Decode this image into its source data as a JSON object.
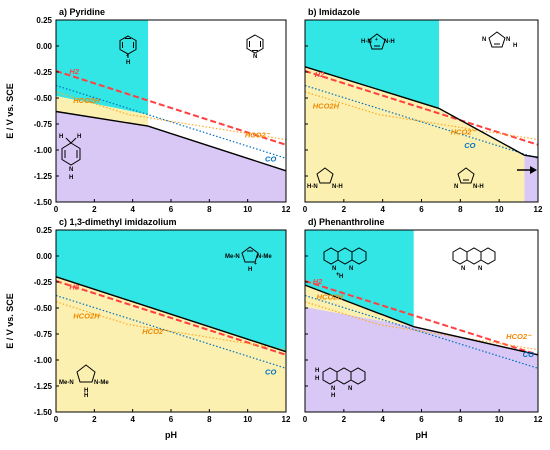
{
  "chart_data": [
    {
      "type": "area",
      "title": "a) Pyridine",
      "xlabel": "",
      "ylabel": "E / V vs. SCE",
      "xlim": [
        0,
        12
      ],
      "ylim": [
        -1.5,
        0.25
      ],
      "x_ticks": [
        "0",
        "2",
        "4",
        "6",
        "8",
        "10",
        "12"
      ],
      "y_ticks": [
        "0.25",
        "0.00",
        "-0.25",
        "-0.50",
        "-0.75",
        "-1.00",
        "-1.25",
        "-1.50"
      ],
      "regions": [
        {
          "name": "pyridinium",
          "color": "#33e6e6",
          "polygon": [
            [
              0,
              0.25
            ],
            [
              4.8,
              0.25
            ],
            [
              4.8,
              -0.77
            ],
            [
              0,
              -0.63
            ]
          ]
        },
        {
          "name": "dihydropyridine",
          "color": "#d9c8f5",
          "polygon": [
            [
              0,
              -0.63
            ],
            [
              4.8,
              -0.77
            ],
            [
              12,
              -1.2
            ],
            [
              12,
              -1.5
            ],
            [
              0,
              -1.5
            ]
          ]
        },
        {
          "name": "HCOOH-yellow",
          "color": "#fbf0b0",
          "polygon": [
            [
              0,
              -0.48
            ],
            [
              4.8,
              -0.66
            ],
            [
              4.8,
              -0.77
            ],
            [
              0,
              -0.63
            ]
          ]
        }
      ],
      "series": [
        {
          "name": "H2",
          "style": "red-dashed",
          "x": [
            0,
            12
          ],
          "y": [
            -0.24,
            -0.95
          ]
        },
        {
          "name": "HCO2H",
          "style": "orange-dotted",
          "x": [
            0,
            3.8,
            12
          ],
          "y": [
            -0.44,
            -0.66,
            -0.9
          ]
        },
        {
          "name": "CO",
          "style": "blue-dotted",
          "x": [
            0,
            12
          ],
          "y": [
            -0.38,
            -1.08
          ]
        },
        {
          "name": "boundary",
          "style": "black-solid",
          "x": [
            0,
            4.8,
            12
          ],
          "y": [
            -0.63,
            -0.77,
            -1.2
          ]
        }
      ],
      "labels": [
        {
          "text": "H2",
          "x": 0.7,
          "y": -0.27
        },
        {
          "text": "HCO2H",
          "x": 0.9,
          "y": -0.55
        },
        {
          "text": "HCO2⁻",
          "x": 10.5,
          "y": -0.88
        },
        {
          "text": "CO",
          "x": 11.2,
          "y": -1.11
        }
      ]
    },
    {
      "type": "area",
      "title": "b) Imidazole",
      "xlabel": "",
      "ylabel": "",
      "xlim": [
        0,
        12
      ],
      "ylim": [
        -1.5,
        0.25
      ],
      "x_ticks": [
        "0",
        "2",
        "4",
        "6",
        "8",
        "10",
        "12"
      ],
      "y_ticks": [],
      "regions": [
        {
          "name": "imidazolium",
          "color": "#33e6e6",
          "polygon": [
            [
              0,
              0.25
            ],
            [
              6.9,
              0.25
            ],
            [
              6.9,
              -0.6
            ],
            [
              0,
              -0.2
            ]
          ]
        },
        {
          "name": "imidazoline-yellow",
          "color": "#fbf0b0",
          "polygon": [
            [
              0,
              -0.2
            ],
            [
              6.9,
              -0.6
            ],
            [
              11.3,
              -1.05
            ],
            [
              11.3,
              -1.5
            ],
            [
              0,
              -1.5
            ]
          ]
        },
        {
          "name": "purple-strip",
          "color": "#d9c8f5",
          "polygon": [
            [
              11.3,
              -1.05
            ],
            [
              12,
              -1.07
            ],
            [
              12,
              -1.5
            ],
            [
              11.3,
              -1.5
            ]
          ]
        }
      ],
      "series": [
        {
          "name": "H2",
          "style": "red-dashed",
          "x": [
            0,
            12
          ],
          "y": [
            -0.24,
            -0.95
          ]
        },
        {
          "name": "HCO2H",
          "style": "orange-dotted",
          "x": [
            0,
            3.8,
            12
          ],
          "y": [
            -0.44,
            -0.66,
            -0.9
          ]
        },
        {
          "name": "CO",
          "style": "blue-dotted",
          "x": [
            0,
            12
          ],
          "y": [
            -0.38,
            -1.08
          ]
        },
        {
          "name": "boundary",
          "style": "black-solid",
          "x": [
            0,
            6.9,
            11.3,
            12
          ],
          "y": [
            -0.2,
            -0.6,
            -1.05,
            -1.07
          ]
        }
      ],
      "labels": [
        {
          "text": "H2",
          "x": 0.5,
          "y": -0.3
        },
        {
          "text": "HCO2H",
          "x": 0.4,
          "y": -0.6
        },
        {
          "text": "HCO2⁻",
          "x": 7.5,
          "y": -0.85
        },
        {
          "text": "CO",
          "x": 8.2,
          "y": -0.98
        }
      ]
    },
    {
      "type": "area",
      "title": "c) 1,3-dimethyl imidazolium",
      "xlabel": "pH",
      "ylabel": "E / V vs. SCE",
      "xlim": [
        0,
        12
      ],
      "ylim": [
        -1.5,
        0.25
      ],
      "x_ticks": [
        "0",
        "2",
        "4",
        "6",
        "8",
        "10",
        "12"
      ],
      "y_ticks": [
        "0.25",
        "0.00",
        "-0.25",
        "-0.50",
        "-0.75",
        "-1.00",
        "-1.25",
        "-1.50"
      ],
      "regions": [
        {
          "name": "dimethylimidazolium",
          "color": "#33e6e6",
          "polygon": [
            [
              0,
              0.25
            ],
            [
              12,
              0.25
            ],
            [
              12,
              -0.92
            ],
            [
              0,
              -0.2
            ]
          ]
        },
        {
          "name": "reduced-yellow",
          "color": "#fbf0b0",
          "polygon": [
            [
              0,
              -0.2
            ],
            [
              12,
              -0.92
            ],
            [
              12,
              -1.5
            ],
            [
              0,
              -1.5
            ]
          ]
        }
      ],
      "series": [
        {
          "name": "H2",
          "style": "red-dashed",
          "x": [
            0,
            12
          ],
          "y": [
            -0.24,
            -0.95
          ]
        },
        {
          "name": "HCO2H",
          "style": "orange-dotted",
          "x": [
            0,
            3.8,
            12
          ],
          "y": [
            -0.44,
            -0.66,
            -0.9
          ]
        },
        {
          "name": "CO",
          "style": "blue-dotted",
          "x": [
            0,
            12
          ],
          "y": [
            -0.38,
            -1.08
          ]
        },
        {
          "name": "boundary",
          "style": "black-solid",
          "x": [
            0,
            12
          ],
          "y": [
            -0.2,
            -0.92
          ]
        }
      ],
      "labels": [
        {
          "text": "H2",
          "x": 0.7,
          "y": -0.32
        },
        {
          "text": "HCO2H",
          "x": 0.9,
          "y": -0.6
        },
        {
          "text": "HCO2⁻",
          "x": 4.5,
          "y": -0.75
        },
        {
          "text": "CO",
          "x": 11.2,
          "y": -1.14
        }
      ]
    },
    {
      "type": "area",
      "title": "d) Phenanthroline",
      "xlabel": "pH",
      "ylabel": "",
      "xlim": [
        0,
        12
      ],
      "ylim": [
        -1.5,
        0.25
      ],
      "x_ticks": [
        "0",
        "2",
        "4",
        "6",
        "8",
        "10",
        "12"
      ],
      "y_ticks": [],
      "regions": [
        {
          "name": "phenanthrolinium",
          "color": "#33e6e6",
          "polygon": [
            [
              0,
              0.25
            ],
            [
              5.6,
              0.25
            ],
            [
              5.6,
              -0.68
            ],
            [
              0,
              -0.28
            ]
          ]
        },
        {
          "name": "dihydrophenanthroline",
          "color": "#d9c8f5",
          "polygon": [
            [
              0,
              -0.49
            ],
            [
              5.6,
              -0.68
            ],
            [
              12,
              -0.95
            ],
            [
              12,
              -1.5
            ],
            [
              0,
              -1.5
            ]
          ]
        },
        {
          "name": "HCOOH-yellow",
          "color": "#fbf0b0",
          "polygon": [
            [
              0,
              -0.28
            ],
            [
              5.6,
              -0.68
            ],
            [
              0,
              -0.49
            ]
          ]
        }
      ],
      "series": [
        {
          "name": "H2",
          "style": "red-dashed",
          "x": [
            0,
            12
          ],
          "y": [
            -0.24,
            -0.95
          ]
        },
        {
          "name": "HCO2H",
          "style": "orange-dotted",
          "x": [
            0,
            3.8,
            12
          ],
          "y": [
            -0.44,
            -0.66,
            -0.9
          ]
        },
        {
          "name": "CO",
          "style": "blue-dotted",
          "x": [
            0,
            12
          ],
          "y": [
            -0.38,
            -1.08
          ]
        },
        {
          "name": "boundary",
          "style": "black-solid",
          "x": [
            0,
            5.6,
            12
          ],
          "y": [
            -0.28,
            -0.68,
            -0.95
          ]
        }
      ],
      "labels": [
        {
          "text": "H2",
          "x": 0.4,
          "y": -0.27
        },
        {
          "text": "HCO2H",
          "x": 0.6,
          "y": -0.42
        },
        {
          "text": "HCO2⁻",
          "x": 11.0,
          "y": -0.8
        },
        {
          "text": "CO",
          "x": 11.5,
          "y": -0.97
        }
      ]
    }
  ],
  "colors": {
    "cyan": "#33e6e6",
    "yellow": "#fbf0b0",
    "purple": "#d9c8f5",
    "h2_line": "#ff4040",
    "hcooh_line": "#ffaa22",
    "co_line": "#0070c0",
    "label_orange": "#ee8800",
    "label_blue": "#0070c0",
    "label_red": "#ff4040"
  },
  "icons": [
    "pyridinium-structure",
    "pyridine-structure",
    "dihydropyridine-structure",
    "imidazolium-structure",
    "imidazole-structure",
    "imidazoline-structure",
    "imidazoline-structure-2",
    "right-arrow-icon",
    "dimethylimidazolium-structure",
    "dimethylimidazoline-structure",
    "phenanthrolinium-structure",
    "phenanthroline-structure",
    "dihydrophenanthroline-structure"
  ]
}
